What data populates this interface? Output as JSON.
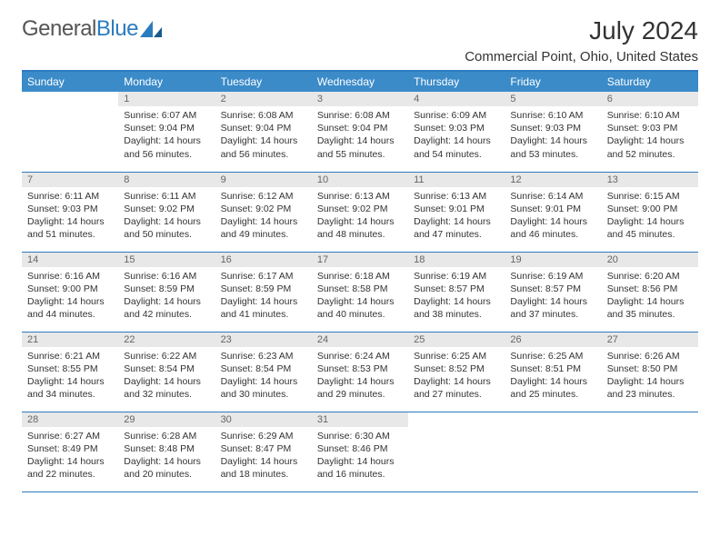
{
  "logo": {
    "text1": "General",
    "text2": "Blue"
  },
  "title": "July 2024",
  "location": "Commercial Point, Ohio, United States",
  "colors": {
    "header_bg": "#3b8bc9",
    "header_text": "#ffffff",
    "border": "#2b7bbf",
    "daynum_bg": "#e8e8e8",
    "daynum_text": "#666666",
    "body_text": "#333333",
    "logo_gray": "#555555",
    "logo_blue": "#2b7bbf",
    "page_bg": "#ffffff"
  },
  "typography": {
    "title_fontsize": 28,
    "location_fontsize": 15,
    "weekday_fontsize": 12,
    "daynum_fontsize": 11,
    "body_fontsize": 10.5,
    "logo_fontsize": 24
  },
  "weekdays": [
    "Sunday",
    "Monday",
    "Tuesday",
    "Wednesday",
    "Thursday",
    "Friday",
    "Saturday"
  ],
  "weeks": [
    [
      {
        "day": "",
        "sunrise": "",
        "sunset": "",
        "daylight": ""
      },
      {
        "day": "1",
        "sunrise": "Sunrise: 6:07 AM",
        "sunset": "Sunset: 9:04 PM",
        "daylight": "Daylight: 14 hours and 56 minutes."
      },
      {
        "day": "2",
        "sunrise": "Sunrise: 6:08 AM",
        "sunset": "Sunset: 9:04 PM",
        "daylight": "Daylight: 14 hours and 56 minutes."
      },
      {
        "day": "3",
        "sunrise": "Sunrise: 6:08 AM",
        "sunset": "Sunset: 9:04 PM",
        "daylight": "Daylight: 14 hours and 55 minutes."
      },
      {
        "day": "4",
        "sunrise": "Sunrise: 6:09 AM",
        "sunset": "Sunset: 9:03 PM",
        "daylight": "Daylight: 14 hours and 54 minutes."
      },
      {
        "day": "5",
        "sunrise": "Sunrise: 6:10 AM",
        "sunset": "Sunset: 9:03 PM",
        "daylight": "Daylight: 14 hours and 53 minutes."
      },
      {
        "day": "6",
        "sunrise": "Sunrise: 6:10 AM",
        "sunset": "Sunset: 9:03 PM",
        "daylight": "Daylight: 14 hours and 52 minutes."
      }
    ],
    [
      {
        "day": "7",
        "sunrise": "Sunrise: 6:11 AM",
        "sunset": "Sunset: 9:03 PM",
        "daylight": "Daylight: 14 hours and 51 minutes."
      },
      {
        "day": "8",
        "sunrise": "Sunrise: 6:11 AM",
        "sunset": "Sunset: 9:02 PM",
        "daylight": "Daylight: 14 hours and 50 minutes."
      },
      {
        "day": "9",
        "sunrise": "Sunrise: 6:12 AM",
        "sunset": "Sunset: 9:02 PM",
        "daylight": "Daylight: 14 hours and 49 minutes."
      },
      {
        "day": "10",
        "sunrise": "Sunrise: 6:13 AM",
        "sunset": "Sunset: 9:02 PM",
        "daylight": "Daylight: 14 hours and 48 minutes."
      },
      {
        "day": "11",
        "sunrise": "Sunrise: 6:13 AM",
        "sunset": "Sunset: 9:01 PM",
        "daylight": "Daylight: 14 hours and 47 minutes."
      },
      {
        "day": "12",
        "sunrise": "Sunrise: 6:14 AM",
        "sunset": "Sunset: 9:01 PM",
        "daylight": "Daylight: 14 hours and 46 minutes."
      },
      {
        "day": "13",
        "sunrise": "Sunrise: 6:15 AM",
        "sunset": "Sunset: 9:00 PM",
        "daylight": "Daylight: 14 hours and 45 minutes."
      }
    ],
    [
      {
        "day": "14",
        "sunrise": "Sunrise: 6:16 AM",
        "sunset": "Sunset: 9:00 PM",
        "daylight": "Daylight: 14 hours and 44 minutes."
      },
      {
        "day": "15",
        "sunrise": "Sunrise: 6:16 AM",
        "sunset": "Sunset: 8:59 PM",
        "daylight": "Daylight: 14 hours and 42 minutes."
      },
      {
        "day": "16",
        "sunrise": "Sunrise: 6:17 AM",
        "sunset": "Sunset: 8:59 PM",
        "daylight": "Daylight: 14 hours and 41 minutes."
      },
      {
        "day": "17",
        "sunrise": "Sunrise: 6:18 AM",
        "sunset": "Sunset: 8:58 PM",
        "daylight": "Daylight: 14 hours and 40 minutes."
      },
      {
        "day": "18",
        "sunrise": "Sunrise: 6:19 AM",
        "sunset": "Sunset: 8:57 PM",
        "daylight": "Daylight: 14 hours and 38 minutes."
      },
      {
        "day": "19",
        "sunrise": "Sunrise: 6:19 AM",
        "sunset": "Sunset: 8:57 PM",
        "daylight": "Daylight: 14 hours and 37 minutes."
      },
      {
        "day": "20",
        "sunrise": "Sunrise: 6:20 AM",
        "sunset": "Sunset: 8:56 PM",
        "daylight": "Daylight: 14 hours and 35 minutes."
      }
    ],
    [
      {
        "day": "21",
        "sunrise": "Sunrise: 6:21 AM",
        "sunset": "Sunset: 8:55 PM",
        "daylight": "Daylight: 14 hours and 34 minutes."
      },
      {
        "day": "22",
        "sunrise": "Sunrise: 6:22 AM",
        "sunset": "Sunset: 8:54 PM",
        "daylight": "Daylight: 14 hours and 32 minutes."
      },
      {
        "day": "23",
        "sunrise": "Sunrise: 6:23 AM",
        "sunset": "Sunset: 8:54 PM",
        "daylight": "Daylight: 14 hours and 30 minutes."
      },
      {
        "day": "24",
        "sunrise": "Sunrise: 6:24 AM",
        "sunset": "Sunset: 8:53 PM",
        "daylight": "Daylight: 14 hours and 29 minutes."
      },
      {
        "day": "25",
        "sunrise": "Sunrise: 6:25 AM",
        "sunset": "Sunset: 8:52 PM",
        "daylight": "Daylight: 14 hours and 27 minutes."
      },
      {
        "day": "26",
        "sunrise": "Sunrise: 6:25 AM",
        "sunset": "Sunset: 8:51 PM",
        "daylight": "Daylight: 14 hours and 25 minutes."
      },
      {
        "day": "27",
        "sunrise": "Sunrise: 6:26 AM",
        "sunset": "Sunset: 8:50 PM",
        "daylight": "Daylight: 14 hours and 23 minutes."
      }
    ],
    [
      {
        "day": "28",
        "sunrise": "Sunrise: 6:27 AM",
        "sunset": "Sunset: 8:49 PM",
        "daylight": "Daylight: 14 hours and 22 minutes."
      },
      {
        "day": "29",
        "sunrise": "Sunrise: 6:28 AM",
        "sunset": "Sunset: 8:48 PM",
        "daylight": "Daylight: 14 hours and 20 minutes."
      },
      {
        "day": "30",
        "sunrise": "Sunrise: 6:29 AM",
        "sunset": "Sunset: 8:47 PM",
        "daylight": "Daylight: 14 hours and 18 minutes."
      },
      {
        "day": "31",
        "sunrise": "Sunrise: 6:30 AM",
        "sunset": "Sunset: 8:46 PM",
        "daylight": "Daylight: 14 hours and 16 minutes."
      },
      {
        "day": "",
        "sunrise": "",
        "sunset": "",
        "daylight": ""
      },
      {
        "day": "",
        "sunrise": "",
        "sunset": "",
        "daylight": ""
      },
      {
        "day": "",
        "sunrise": "",
        "sunset": "",
        "daylight": ""
      }
    ]
  ]
}
